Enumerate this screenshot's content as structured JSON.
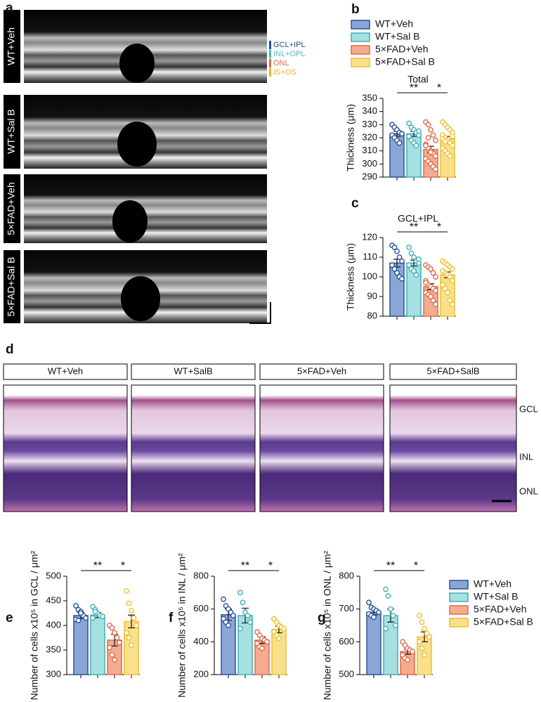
{
  "panel_labels": [
    "a",
    "b",
    "c",
    "d",
    "e",
    "f",
    "g"
  ],
  "oct": {
    "labels": [
      "WT+Veh",
      "WT+Sal B",
      "5×FAD+Veh",
      "5×FAD+Sal B"
    ],
    "layers": [
      {
        "name": "GCL+IPL",
        "color": "#1f4e8c"
      },
      {
        "name": "INL+OPL",
        "color": "#4fb8c8"
      },
      {
        "name": "ONL",
        "color": "#e06a4a"
      },
      {
        "name": "IS+OS",
        "color": "#f0b030"
      }
    ]
  },
  "histology": {
    "labels": [
      "WT+Veh",
      "WT+SalB",
      "5×FAD+Veh",
      "5×FAD+SalB"
    ],
    "layers": [
      "GCL",
      "INL",
      "ONL"
    ]
  },
  "chart_data": [
    {
      "type": "bar",
      "title": "Total",
      "ylabel": "Thickness (μm)",
      "ylim": [
        290,
        350
      ],
      "yticks": [
        290,
        300,
        310,
        320,
        330,
        340,
        350
      ],
      "annotations": [
        "**",
        "*"
      ],
      "legend": "top",
      "series": [
        {
          "name": "WT+Veh",
          "color": "#8aa6d6",
          "edge": "#2a5298",
          "values": [
            323
          ],
          "error": [
            2
          ],
          "points": [
            330,
            328,
            326,
            324,
            323,
            322,
            320,
            318,
            316,
            323
          ]
        },
        {
          "name": "WT+Sal B",
          "color": "#a6e0e0",
          "edge": "#3fb0b8",
          "values": [
            323
          ],
          "error": [
            2
          ],
          "points": [
            331,
            328,
            326,
            324,
            322,
            321,
            318,
            316,
            314,
            325
          ]
        },
        {
          "name": "5×FAD+Veh",
          "color": "#f5ab90",
          "edge": "#e06a4a",
          "values": [
            311
          ],
          "error": [
            2.5
          ],
          "points": [
            332,
            330,
            326,
            322,
            318,
            315,
            312,
            310,
            308,
            306,
            304,
            302,
            300,
            298,
            296,
            314,
            320,
            309
          ]
        },
        {
          "name": "5×FAD+Sal B",
          "color": "#fbe08c",
          "edge": "#efbf2f",
          "values": [
            319
          ],
          "error": [
            2
          ],
          "points": [
            332,
            330,
            328,
            326,
            324,
            322,
            320,
            318,
            316,
            314,
            312,
            310,
            308,
            306,
            321,
            319,
            317
          ]
        }
      ]
    },
    {
      "type": "bar",
      "title": "GCL+IPL",
      "ylabel": "Thickness (μm)",
      "ylim": [
        80,
        120
      ],
      "yticks": [
        80,
        90,
        100,
        110,
        120
      ],
      "annotations": [
        "**",
        "*"
      ],
      "legend": "none",
      "series": [
        {
          "name": "WT+Veh",
          "color": "#8aa6d6",
          "edge": "#2a5298",
          "values": [
            107
          ],
          "error": [
            2
          ],
          "points": [
            116,
            115,
            113,
            110,
            108,
            106,
            104,
            102,
            100,
            99
          ]
        },
        {
          "name": "WT+Sal B",
          "color": "#a6e0e0",
          "edge": "#3fb0b8",
          "values": [
            107
          ],
          "error": [
            1.5
          ],
          "points": [
            115,
            112,
            110,
            108,
            107,
            106,
            104,
            103,
            101,
            109
          ]
        },
        {
          "name": "5×FAD+Veh",
          "color": "#f5ab90",
          "edge": "#e06a4a",
          "values": [
            95
          ],
          "error": [
            1.5
          ],
          "points": [
            106,
            105,
            104,
            102,
            100,
            98,
            96,
            95,
            94,
            93,
            92,
            91,
            90,
            88,
            86,
            97
          ]
        },
        {
          "name": "5×FAD+Sal B",
          "color": "#fbe08c",
          "edge": "#efbf2f",
          "values": [
            101
          ],
          "error": [
            1.5
          ],
          "points": [
            108,
            107,
            106,
            105,
            104,
            103,
            102,
            101,
            100,
            98,
            96,
            94,
            92,
            88,
            86,
            103
          ]
        }
      ]
    },
    {
      "type": "bar",
      "ylabel": "Number of cells x10⁵ in GCL / μm²",
      "ylim": [
        300,
        500
      ],
      "yticks": [
        300,
        350,
        400,
        450,
        500
      ],
      "annotations": [
        "**",
        "*"
      ],
      "legend": "none",
      "series": [
        {
          "name": "WT+Veh",
          "color": "#8aa6d6",
          "edge": "#2a5298",
          "values": [
            420
          ],
          "error": [
            6
          ],
          "points": [
            440,
            432,
            428,
            420,
            415,
            412,
            410,
            425
          ]
        },
        {
          "name": "WT+Sal B",
          "color": "#a6e0e0",
          "edge": "#3fb0b8",
          "values": [
            421
          ],
          "error": [
            5
          ],
          "points": [
            438,
            432,
            425,
            420,
            418,
            415,
            428
          ]
        },
        {
          "name": "5×FAD+Veh",
          "color": "#f5ab90",
          "edge": "#e06a4a",
          "values": [
            370
          ],
          "error": [
            12
          ],
          "points": [
            400,
            395,
            385,
            375,
            365,
            355,
            340,
            330
          ]
        },
        {
          "name": "5×FAD+Sal B",
          "color": "#fbe08c",
          "edge": "#efbf2f",
          "values": [
            408
          ],
          "error": [
            13
          ],
          "points": [
            470,
            445,
            430,
            415,
            400,
            385,
            375,
            360
          ]
        }
      ]
    },
    {
      "type": "bar",
      "ylabel": "Number of cells x10⁵ in INL / μm²",
      "ylim": [
        200,
        800
      ],
      "yticks": [
        200,
        400,
        600,
        800
      ],
      "annotations": [
        "**",
        "*"
      ],
      "legend": "none",
      "series": [
        {
          "name": "WT+Veh",
          "color": "#8aa6d6",
          "edge": "#2a5298",
          "values": [
            565
          ],
          "error": [
            35
          ],
          "points": [
            660,
            620,
            600,
            580,
            560,
            540,
            520,
            500
          ]
        },
        {
          "name": "WT+Sal B",
          "color": "#a6e0e0",
          "edge": "#3fb0b8",
          "values": [
            560
          ],
          "error": [
            45
          ],
          "points": [
            700,
            640,
            580,
            560,
            520,
            480
          ]
        },
        {
          "name": "5×FAD+Veh",
          "color": "#f5ab90",
          "edge": "#e06a4a",
          "values": [
            410
          ],
          "error": [
            20
          ],
          "points": [
            460,
            440,
            420,
            410,
            400,
            390,
            370,
            360
          ]
        },
        {
          "name": "5×FAD+Sal B",
          "color": "#fbe08c",
          "edge": "#efbf2f",
          "values": [
            475
          ],
          "error": [
            20
          ],
          "points": [
            540,
            520,
            500,
            490,
            480,
            460,
            440,
            420
          ]
        }
      ]
    },
    {
      "type": "bar",
      "ylabel": "Number of cells x10⁵ in ONL / μm²",
      "ylim": [
        500,
        800
      ],
      "yticks": [
        500,
        600,
        700,
        800
      ],
      "annotations": [
        "**",
        "*"
      ],
      "legend": "right",
      "series": [
        {
          "name": "WT+Veh",
          "color": "#8aa6d6",
          "edge": "#2a5298",
          "values": [
            690
          ],
          "error": [
            8
          ],
          "points": [
            720,
            705,
            700,
            695,
            690,
            685,
            680,
            675
          ]
        },
        {
          "name": "WT+Sal B",
          "color": "#a6e0e0",
          "edge": "#3fb0b8",
          "values": [
            680
          ],
          "error": [
            20
          ],
          "points": [
            760,
            740,
            700,
            680,
            650,
            640
          ]
        },
        {
          "name": "5×FAD+Veh",
          "color": "#f5ab90",
          "edge": "#e06a4a",
          "values": [
            570
          ],
          "error": [
            8
          ],
          "points": [
            600,
            590,
            580,
            575,
            570,
            560,
            550,
            545
          ]
        },
        {
          "name": "5×FAD+Sal B",
          "color": "#fbe08c",
          "edge": "#efbf2f",
          "values": [
            615
          ],
          "error": [
            15
          ],
          "points": [
            680,
            660,
            640,
            625,
            615,
            600,
            580,
            560
          ]
        }
      ]
    }
  ]
}
